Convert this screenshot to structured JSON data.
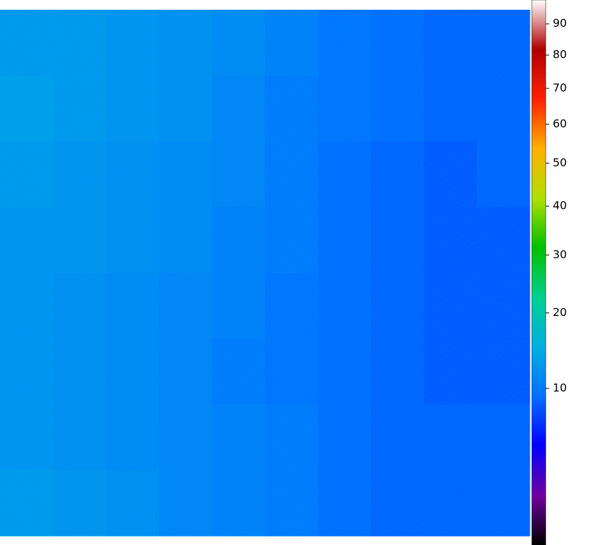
{
  "chart_data": {
    "type": "heatmap",
    "scale": "sqrt",
    "clim": [
      0.2,
      98
    ],
    "colorbar_ticks": [
      10,
      20,
      30,
      40,
      50,
      60,
      70,
      80,
      90
    ],
    "colormap": [
      "#000000",
      "#7000a0",
      "#0000ff",
      "#0070ff",
      "#00b0e0",
      "#00d090",
      "#00c000",
      "#b0e000",
      "#ffb000",
      "#ff2000",
      "#b00000",
      "#ffffff"
    ],
    "values": [
      [
        13,
        13,
        12.5,
        12,
        11.5,
        10.5,
        9.5,
        9,
        8.5,
        8.5
      ],
      [
        13.5,
        13,
        12.5,
        12,
        11,
        10,
        9.5,
        9,
        8.5,
        8.5
      ],
      [
        13,
        12.5,
        12,
        11.5,
        11,
        10,
        9,
        8.5,
        8,
        8.5
      ],
      [
        12.5,
        12.5,
        12,
        11.5,
        10.5,
        10,
        9,
        8.5,
        8,
        8
      ],
      [
        12.5,
        12,
        11.5,
        11,
        10.5,
        9.5,
        9,
        8.5,
        8,
        8
      ],
      [
        12.5,
        12,
        11.5,
        11,
        10,
        9.5,
        9,
        8.5,
        8,
        8
      ],
      [
        12.5,
        12,
        11.5,
        11,
        10.5,
        10,
        9,
        8.5,
        8.5,
        8.5
      ],
      [
        13,
        12.5,
        12,
        11,
        10.5,
        10,
        9,
        8.5,
        8.5,
        8.5
      ]
    ]
  }
}
